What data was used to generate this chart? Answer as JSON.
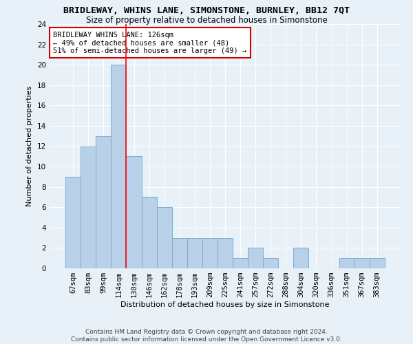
{
  "title": "BRIDLEWAY, WHINS LANE, SIMONSTONE, BURNLEY, BB12 7QT",
  "subtitle": "Size of property relative to detached houses in Simonstone",
  "xlabel": "Distribution of detached houses by size in Simonstone",
  "ylabel": "Number of detached properties",
  "categories": [
    "67sqm",
    "83sqm",
    "99sqm",
    "114sqm",
    "130sqm",
    "146sqm",
    "162sqm",
    "178sqm",
    "193sqm",
    "209sqm",
    "225sqm",
    "241sqm",
    "257sqm",
    "272sqm",
    "288sqm",
    "304sqm",
    "320sqm",
    "336sqm",
    "351sqm",
    "367sqm",
    "383sqm"
  ],
  "values": [
    9,
    12,
    13,
    20,
    11,
    7,
    6,
    3,
    3,
    3,
    3,
    1,
    2,
    1,
    0,
    2,
    0,
    0,
    1,
    1,
    1
  ],
  "bar_color": "#b8d0e8",
  "bar_edge_color": "#7aaed0",
  "background_color": "#e8f0f8",
  "grid_color": "#ffffff",
  "red_line_index": 3.5,
  "annotation_text": "BRIDLEWAY WHINS LANE: 126sqm\n← 49% of detached houses are smaller (48)\n51% of semi-detached houses are larger (49) →",
  "annotation_box_facecolor": "#ffffff",
  "annotation_box_edgecolor": "#cc0000",
  "footer_line1": "Contains HM Land Registry data © Crown copyright and database right 2024.",
  "footer_line2": "Contains public sector information licensed under the Open Government Licence v3.0.",
  "ylim": [
    0,
    24
  ],
  "yticks": [
    0,
    2,
    4,
    6,
    8,
    10,
    12,
    14,
    16,
    18,
    20,
    22,
    24
  ],
  "title_fontsize": 9.5,
  "subtitle_fontsize": 8.5,
  "xlabel_fontsize": 8,
  "ylabel_fontsize": 8,
  "tick_fontsize": 7.5,
  "annotation_fontsize": 7.5,
  "footer_fontsize": 6.5
}
